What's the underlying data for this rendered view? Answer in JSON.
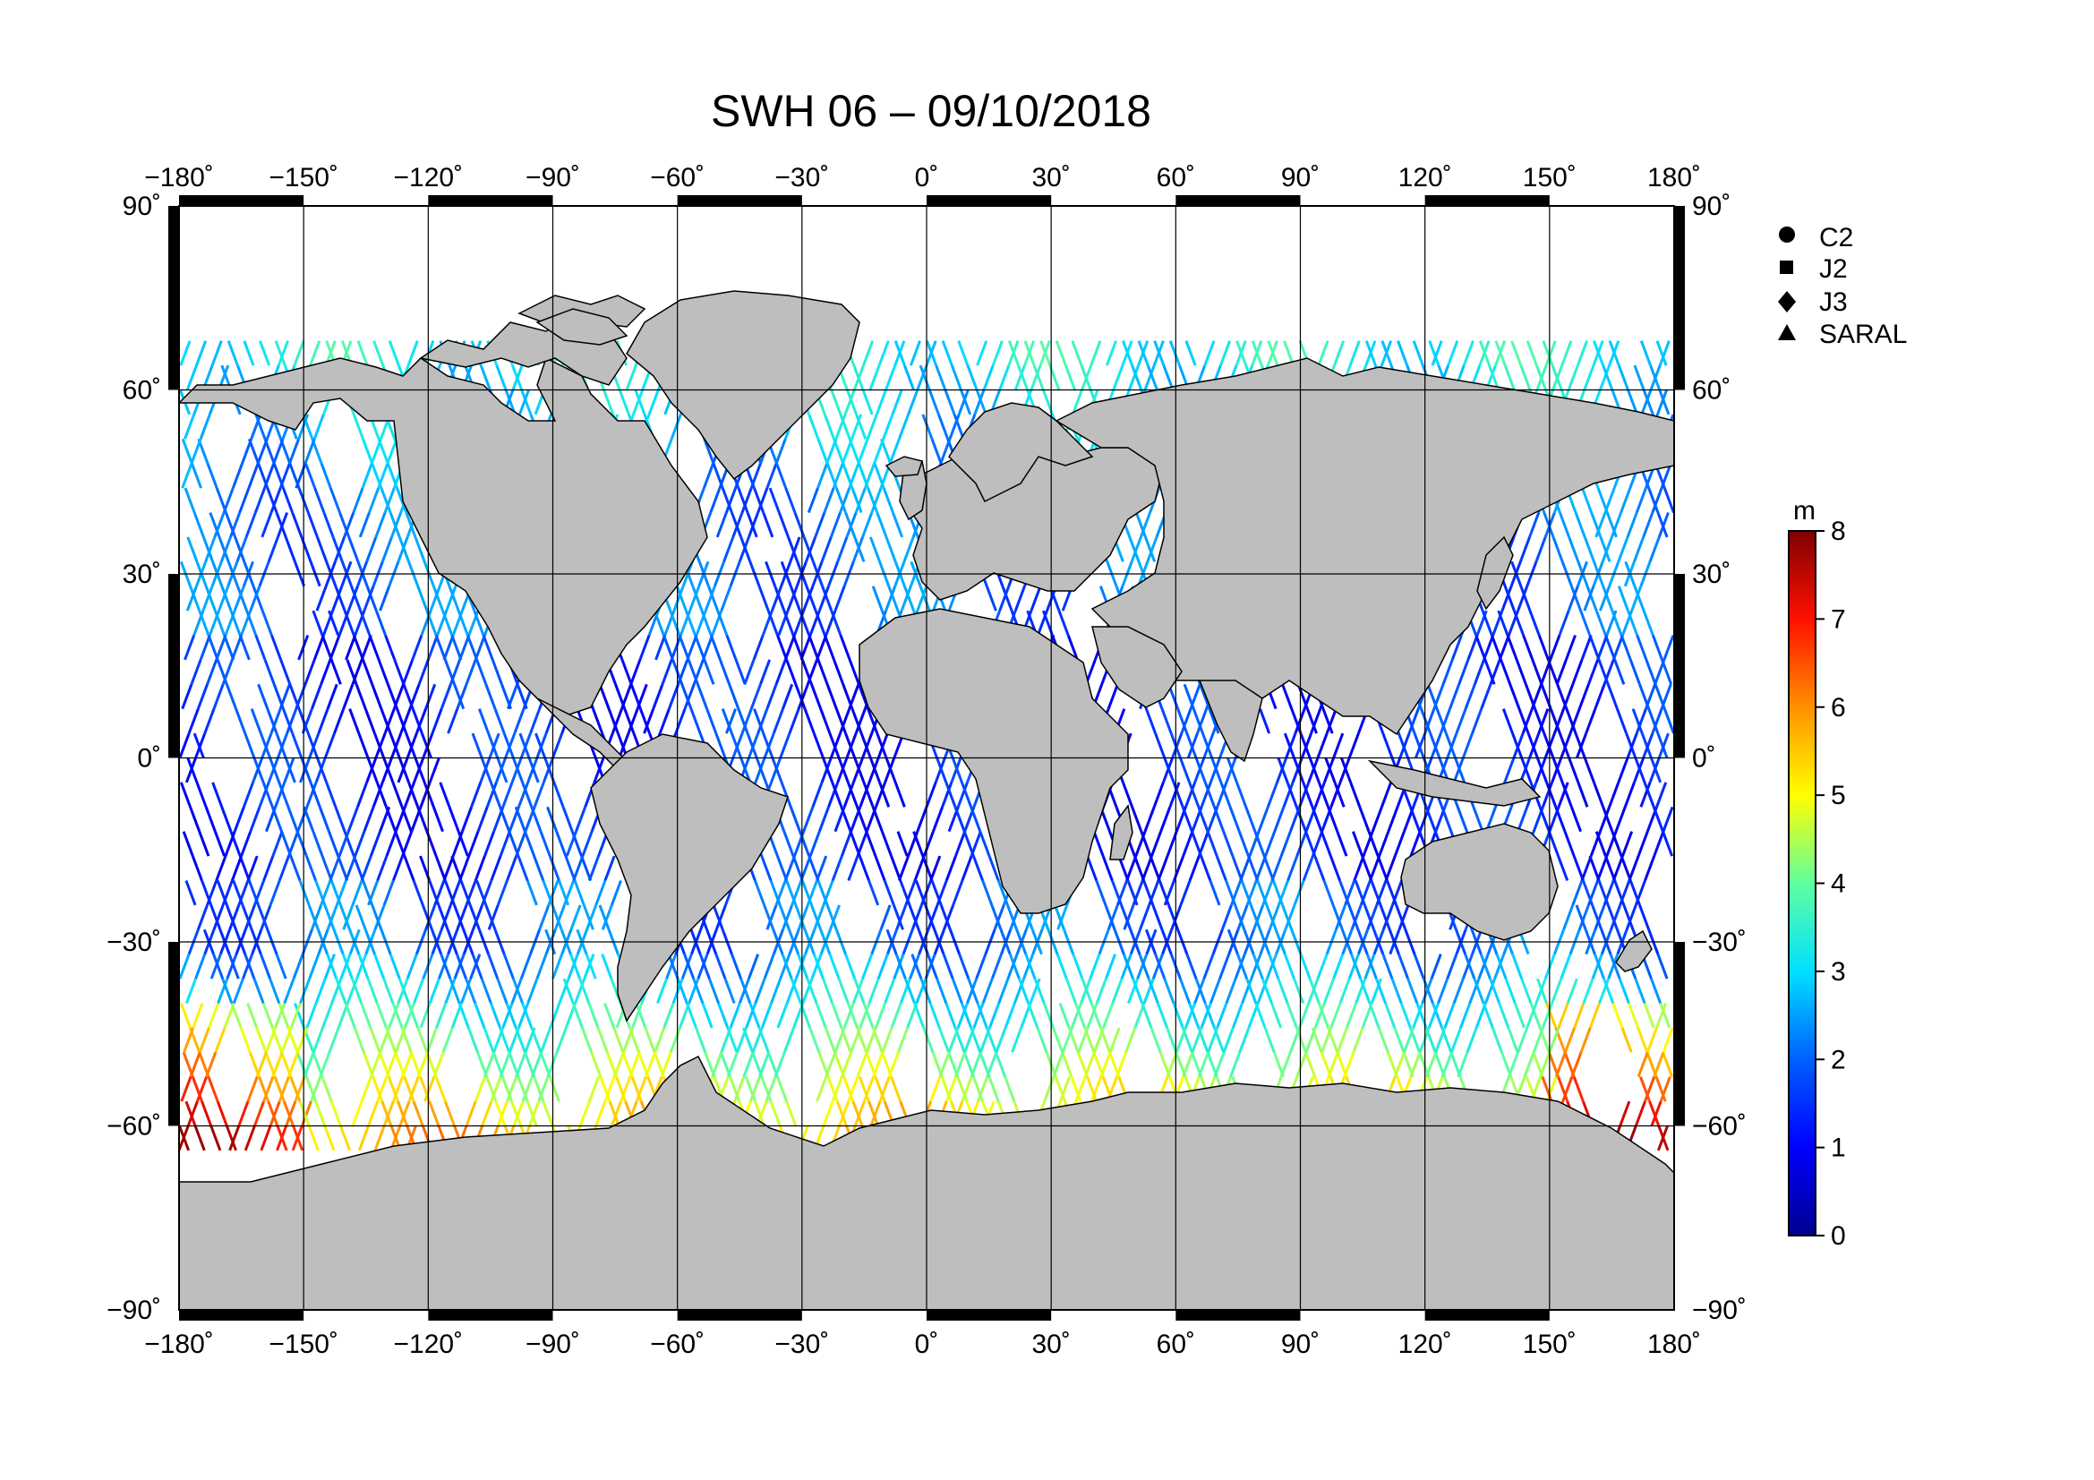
{
  "title": "SWH 06 – 09/10/2018",
  "lon_ticks": [
    "−180˚",
    "−150˚",
    "−120˚",
    "−90˚",
    "−60˚",
    "−30˚",
    "0˚",
    "30˚",
    "60˚",
    "90˚",
    "120˚",
    "150˚",
    "180˚"
  ],
  "lat_ticks": [
    "90˚",
    "60˚",
    "30˚",
    "0˚",
    "−30˚",
    "−60˚",
    "−90˚"
  ],
  "legend": [
    {
      "label": "C2",
      "marker": "circle"
    },
    {
      "label": "J2",
      "marker": "square"
    },
    {
      "label": "J3",
      "marker": "diamond"
    },
    {
      "label": "SARAL",
      "marker": "triangle"
    }
  ],
  "colorbar": {
    "unit": "m",
    "ticks": [
      "0",
      "1",
      "2",
      "3",
      "4",
      "5",
      "6",
      "7",
      "8"
    ],
    "range": [
      0,
      8
    ],
    "colors": [
      "#00008f",
      "#0000ff",
      "#0080ff",
      "#00ffff",
      "#80ff80",
      "#ffff00",
      "#ff8000",
      "#ff0000",
      "#800000"
    ]
  },
  "colors": {
    "land": "#bebebe",
    "ocean": "#ffffff",
    "coast": "#000000"
  }
}
